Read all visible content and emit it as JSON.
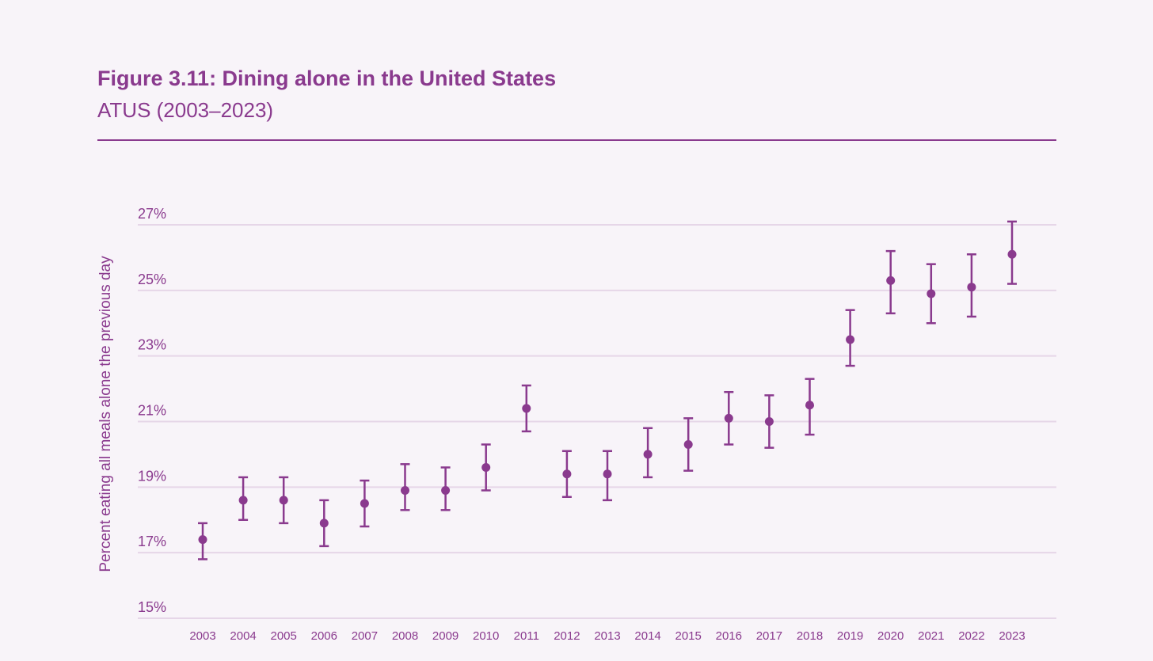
{
  "header": {
    "title": "Figure 3.11: Dining alone in the United States",
    "subtitle": "ATUS (2003–2023)"
  },
  "colors": {
    "accent": "#8a3a8e",
    "gridline": "#e6d6e8",
    "tick_text": "#8a3a8e",
    "background": "#f8f4f9"
  },
  "chart_data": {
    "type": "scatter",
    "title": "Figure 3.11: Dining alone in the United States",
    "subtitle": "ATUS (2003–2023)",
    "xlabel": "",
    "ylabel": "Percent eating all meals alone the previous day",
    "ylim": [
      15,
      27
    ],
    "yticks": [
      15,
      17,
      19,
      21,
      23,
      25,
      27
    ],
    "ytick_labels": [
      "15%",
      "17%",
      "19%",
      "21%",
      "23%",
      "25%",
      "27%"
    ],
    "grid": true,
    "error_bars": true,
    "categories": [
      "2003",
      "2004",
      "2005",
      "2006",
      "2007",
      "2008",
      "2009",
      "2010",
      "2011",
      "2012",
      "2013",
      "2014",
      "2015",
      "2016",
      "2017",
      "2018",
      "2019",
      "2020",
      "2021",
      "2022",
      "2023"
    ],
    "values": [
      17.4,
      18.6,
      18.6,
      17.9,
      18.5,
      18.9,
      18.9,
      19.6,
      21.4,
      19.4,
      19.4,
      20.0,
      20.3,
      21.1,
      21.0,
      21.5,
      23.5,
      25.3,
      24.9,
      25.1,
      26.1
    ],
    "lower": [
      16.8,
      18.0,
      17.9,
      17.2,
      17.8,
      18.3,
      18.3,
      18.9,
      20.7,
      18.7,
      18.6,
      19.3,
      19.5,
      20.3,
      20.2,
      20.6,
      22.7,
      24.3,
      24.0,
      24.2,
      25.2
    ],
    "upper": [
      17.9,
      19.3,
      19.3,
      18.6,
      19.2,
      19.7,
      19.6,
      20.3,
      22.1,
      20.1,
      20.1,
      20.8,
      21.1,
      21.9,
      21.8,
      22.3,
      24.4,
      26.2,
      25.8,
      26.1,
      27.1
    ]
  }
}
